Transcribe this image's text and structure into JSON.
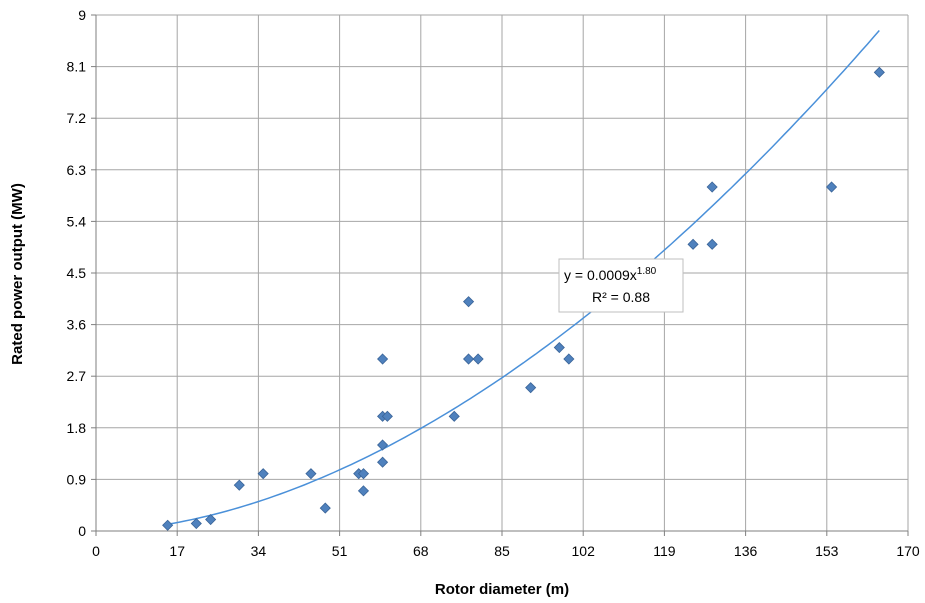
{
  "chart_data": {
    "type": "scatter",
    "xlabel": "Rotor diameter (m)",
    "ylabel": "Rated power output (MW)",
    "xlim": [
      0,
      170
    ],
    "ylim": [
      0,
      9
    ],
    "x_ticks": [
      "0",
      "17",
      "34",
      "51",
      "68",
      "85",
      "102",
      "119",
      "136",
      "153",
      "170"
    ],
    "y_ticks": [
      "0",
      "0.9",
      "1.8",
      "2.7",
      "3.6",
      "4.5",
      "5.4",
      "6.3",
      "7.2",
      "8.1",
      "9"
    ],
    "grid": true,
    "marker": "diamond",
    "marker_color": "#4F81BD",
    "trendline_color": "#4A90D9",
    "points": [
      {
        "x": 15,
        "y": 0.1
      },
      {
        "x": 21,
        "y": 0.13
      },
      {
        "x": 24,
        "y": 0.2
      },
      {
        "x": 30,
        "y": 0.8
      },
      {
        "x": 35,
        "y": 1.0
      },
      {
        "x": 45,
        "y": 1.0
      },
      {
        "x": 48,
        "y": 0.4
      },
      {
        "x": 55,
        "y": 1.0
      },
      {
        "x": 56,
        "y": 1.0
      },
      {
        "x": 56,
        "y": 0.7
      },
      {
        "x": 60,
        "y": 3.0
      },
      {
        "x": 60,
        "y": 2.0
      },
      {
        "x": 61,
        "y": 2.0
      },
      {
        "x": 60,
        "y": 1.5
      },
      {
        "x": 60,
        "y": 1.2
      },
      {
        "x": 75,
        "y": 2.0
      },
      {
        "x": 78,
        "y": 4.0
      },
      {
        "x": 78,
        "y": 3.0
      },
      {
        "x": 80,
        "y": 3.0
      },
      {
        "x": 91,
        "y": 2.5
      },
      {
        "x": 97,
        "y": 3.2
      },
      {
        "x": 99,
        "y": 3.0
      },
      {
        "x": 125,
        "y": 5.0
      },
      {
        "x": 129,
        "y": 5.0
      },
      {
        "x": 129,
        "y": 6.0
      },
      {
        "x": 154,
        "y": 6.0
      },
      {
        "x": 164,
        "y": 8.0
      }
    ],
    "trendline": {
      "type": "power",
      "coefficient": 0.0009,
      "exponent": 1.8,
      "x_range": [
        15,
        164
      ],
      "equation_prefix": "y = 0.0009x",
      "equation_exponent": "1.80",
      "r_squared_label": "R² = 0.88"
    }
  }
}
